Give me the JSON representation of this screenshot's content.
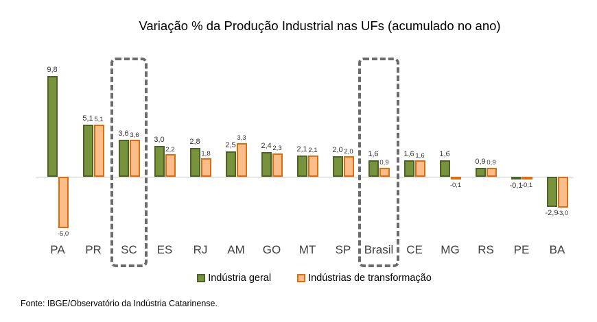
{
  "chart_data": {
    "type": "bar",
    "title": "Variação % da Produção Industrial nas UFs (acumulado no ano)",
    "categories": [
      "PA",
      "PR",
      "SC",
      "ES",
      "RJ",
      "AM",
      "GO",
      "MT",
      "SP",
      "Brasil",
      "CE",
      "MG",
      "RS",
      "PE",
      "BA"
    ],
    "series": [
      {
        "name": "Indústria geral",
        "color": "#77933C",
        "border_color": "#4E6128",
        "values": [
          9.8,
          5.1,
          3.6,
          3.0,
          2.8,
          2.5,
          2.4,
          2.1,
          2.0,
          1.6,
          1.6,
          1.6,
          0.9,
          -0.1,
          -2.9
        ]
      },
      {
        "name": "Indústrias de transformação",
        "color": "#FBBE8B",
        "border_color": "#E36C0A",
        "values": [
          -5.0,
          5.1,
          3.6,
          2.2,
          1.8,
          3.3,
          2.3,
          2.1,
          2.0,
          0.9,
          1.6,
          -0.1,
          0.9,
          -0.1,
          -3.0
        ]
      }
    ],
    "highlighted_categories": [
      "SC",
      "Brasil"
    ],
    "decimal_separator": ",",
    "ylim": [
      -5.5,
      10.5
    ],
    "grid": false,
    "legend_position": "bottom",
    "highlight_color": "#6B6B6B",
    "axis_color": "#C9C9C9"
  },
  "source": "Fonte: IBGE/Observatório da Indústria Catarinense."
}
